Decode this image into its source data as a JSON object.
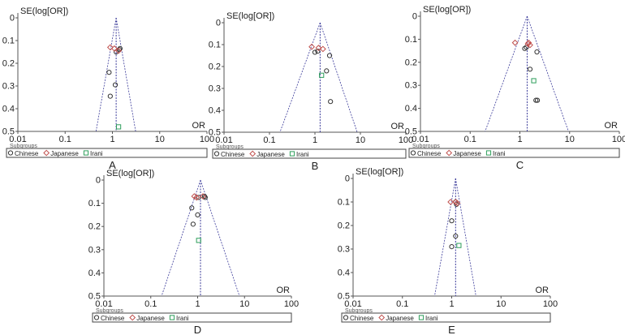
{
  "colors": {
    "Chinese": "#333333",
    "Japanese": "#c0504d",
    "Irani": "#2e9e5b",
    "funnel": "#3b3b9a",
    "axis": "#555555"
  },
  "chart_data": [
    {
      "type": "scatter",
      "panel_label": "A",
      "ylabel": "SE(log[OR])",
      "xlabel": "OR",
      "xscale": "log",
      "xlim": [
        0.01,
        100
      ],
      "ylim": [
        0,
        0.5
      ],
      "y_inverted": true,
      "xticks": [
        "0.01",
        "0.1",
        "1",
        "10",
        "100"
      ],
      "yticks": [
        "0",
        "0.1",
        "0.2",
        "0.3",
        "0.4",
        "0.5"
      ],
      "legend_title": "Subgroups",
      "legend_position": "bottom",
      "pooled_or": 1.2,
      "funnel_limits_at_max_se": [
        0.45,
        3.1
      ],
      "series": [
        {
          "name": "Chinese",
          "marker": "circle",
          "points": [
            [
              1.45,
              0.135
            ],
            [
              1.4,
              0.14
            ],
            [
              1.2,
              0.15
            ],
            [
              0.85,
              0.24
            ],
            [
              1.15,
              0.295
            ],
            [
              0.9,
              0.345
            ]
          ]
        },
        {
          "name": "Japanese",
          "marker": "diamond",
          "points": [
            [
              0.9,
              0.13
            ],
            [
              1.1,
              0.135
            ],
            [
              1.35,
              0.145
            ]
          ]
        },
        {
          "name": "Irani",
          "marker": "square",
          "points": [
            [
              1.35,
              0.48
            ]
          ]
        }
      ]
    },
    {
      "type": "scatter",
      "panel_label": "B",
      "ylabel": "SE(log[OR])",
      "xlabel": "OR",
      "xscale": "log",
      "xlim": [
        0.01,
        100
      ],
      "ylim": [
        0,
        0.5
      ],
      "y_inverted": true,
      "xticks": [
        "0.01",
        "0.1",
        "1",
        "10",
        "100"
      ],
      "yticks": [
        "0",
        "0.1",
        "0.2",
        "0.3",
        "0.4",
        "0.5"
      ],
      "legend_title": "Subgroups",
      "legend_position": "bottom",
      "pooled_or": 1.3,
      "funnel_limits_at_max_se": [
        0.17,
        8.5
      ],
      "series": [
        {
          "name": "Chinese",
          "marker": "circle",
          "points": [
            [
              1.0,
              0.135
            ],
            [
              1.15,
              0.13
            ],
            [
              2.1,
              0.15
            ],
            [
              1.8,
              0.22
            ],
            [
              2.2,
              0.36
            ]
          ]
        },
        {
          "name": "Japanese",
          "marker": "diamond",
          "points": [
            [
              0.85,
              0.11
            ],
            [
              1.2,
              0.115
            ],
            [
              1.5,
              0.12
            ]
          ]
        },
        {
          "name": "Irani",
          "marker": "square",
          "points": [
            [
              1.4,
              0.24
            ]
          ]
        }
      ]
    },
    {
      "type": "scatter",
      "panel_label": "C",
      "ylabel": "SE(log[OR])",
      "xlabel": "OR",
      "xscale": "log",
      "xlim": [
        0.01,
        100
      ],
      "ylim": [
        0,
        0.5
      ],
      "y_inverted": true,
      "xticks": [
        "0.01",
        "0.1",
        "1",
        "10",
        "100"
      ],
      "yticks": [
        "0",
        "0.1",
        "0.2",
        "0.3",
        "0.4",
        "0.5"
      ],
      "legend_title": "Subgroups",
      "legend_position": "bottom",
      "pooled_or": 1.4,
      "funnel_limits_at_max_se": [
        0.2,
        9.5
      ],
      "series": [
        {
          "name": "Chinese",
          "marker": "circle",
          "points": [
            [
              1.25,
              0.14
            ],
            [
              1.35,
              0.135
            ],
            [
              2.2,
              0.155
            ],
            [
              1.6,
              0.23
            ],
            [
              2.1,
              0.365
            ],
            [
              2.25,
              0.365
            ]
          ]
        },
        {
          "name": "Japanese",
          "marker": "diamond",
          "points": [
            [
              0.8,
              0.115
            ],
            [
              1.45,
              0.12
            ],
            [
              1.6,
              0.125
            ],
            [
              1.5,
              0.115
            ]
          ]
        },
        {
          "name": "Irani",
          "marker": "square",
          "points": [
            [
              1.9,
              0.28
            ]
          ]
        }
      ]
    },
    {
      "type": "scatter",
      "panel_label": "D",
      "ylabel": "SE(log[OR])",
      "xlabel": "OR",
      "xscale": "log",
      "xlim": [
        0.01,
        100
      ],
      "ylim": [
        0,
        0.5
      ],
      "y_inverted": true,
      "xticks": [
        "0.01",
        "0.1",
        "1",
        "10",
        "100"
      ],
      "yticks": [
        "0",
        "0.1",
        "0.2",
        "0.3",
        "0.4",
        "0.5"
      ],
      "legend_title": "Subgroups",
      "legend_position": "bottom",
      "pooled_or": 1.15,
      "funnel_limits_at_max_se": [
        0.17,
        7.8
      ],
      "series": [
        {
          "name": "Chinese",
          "marker": "circle",
          "points": [
            [
              1.05,
              0.075
            ],
            [
              1.4,
              0.07
            ],
            [
              1.45,
              0.075
            ],
            [
              0.75,
              0.12
            ],
            [
              1.0,
              0.15
            ],
            [
              0.8,
              0.19
            ]
          ]
        },
        {
          "name": "Japanese",
          "marker": "diamond",
          "points": [
            [
              0.85,
              0.07
            ],
            [
              0.95,
              0.075
            ],
            [
              1.3,
              0.07
            ]
          ]
        },
        {
          "name": "Irani",
          "marker": "square",
          "points": [
            [
              1.05,
              0.26
            ]
          ]
        }
      ]
    },
    {
      "type": "scatter",
      "panel_label": "E",
      "ylabel": "SE(log[OR])",
      "xlabel": "OR",
      "xscale": "log",
      "xlim": [
        0.01,
        100
      ],
      "ylim": [
        0,
        0.5
      ],
      "y_inverted": true,
      "xticks": [
        "0.01",
        "0.1",
        "1",
        "10",
        "100"
      ],
      "yticks": [
        "0",
        "0.1",
        "0.2",
        "0.3",
        "0.4",
        "0.5"
      ],
      "legend_title": "Subgroups",
      "legend_position": "bottom",
      "pooled_or": 1.2,
      "funnel_limits_at_max_se": [
        0.45,
        3.1
      ],
      "series": [
        {
          "name": "Chinese",
          "marker": "circle",
          "points": [
            [
              1.2,
              0.1
            ],
            [
              1.25,
              0.11
            ],
            [
              1.0,
              0.18
            ],
            [
              1.2,
              0.245
            ],
            [
              1.0,
              0.29
            ]
          ]
        },
        {
          "name": "Japanese",
          "marker": "diamond",
          "points": [
            [
              0.95,
              0.1
            ],
            [
              1.2,
              0.1
            ],
            [
              1.3,
              0.105
            ]
          ]
        },
        {
          "name": "Irani",
          "marker": "square",
          "points": [
            [
              1.4,
              0.285
            ]
          ]
        }
      ]
    }
  ]
}
